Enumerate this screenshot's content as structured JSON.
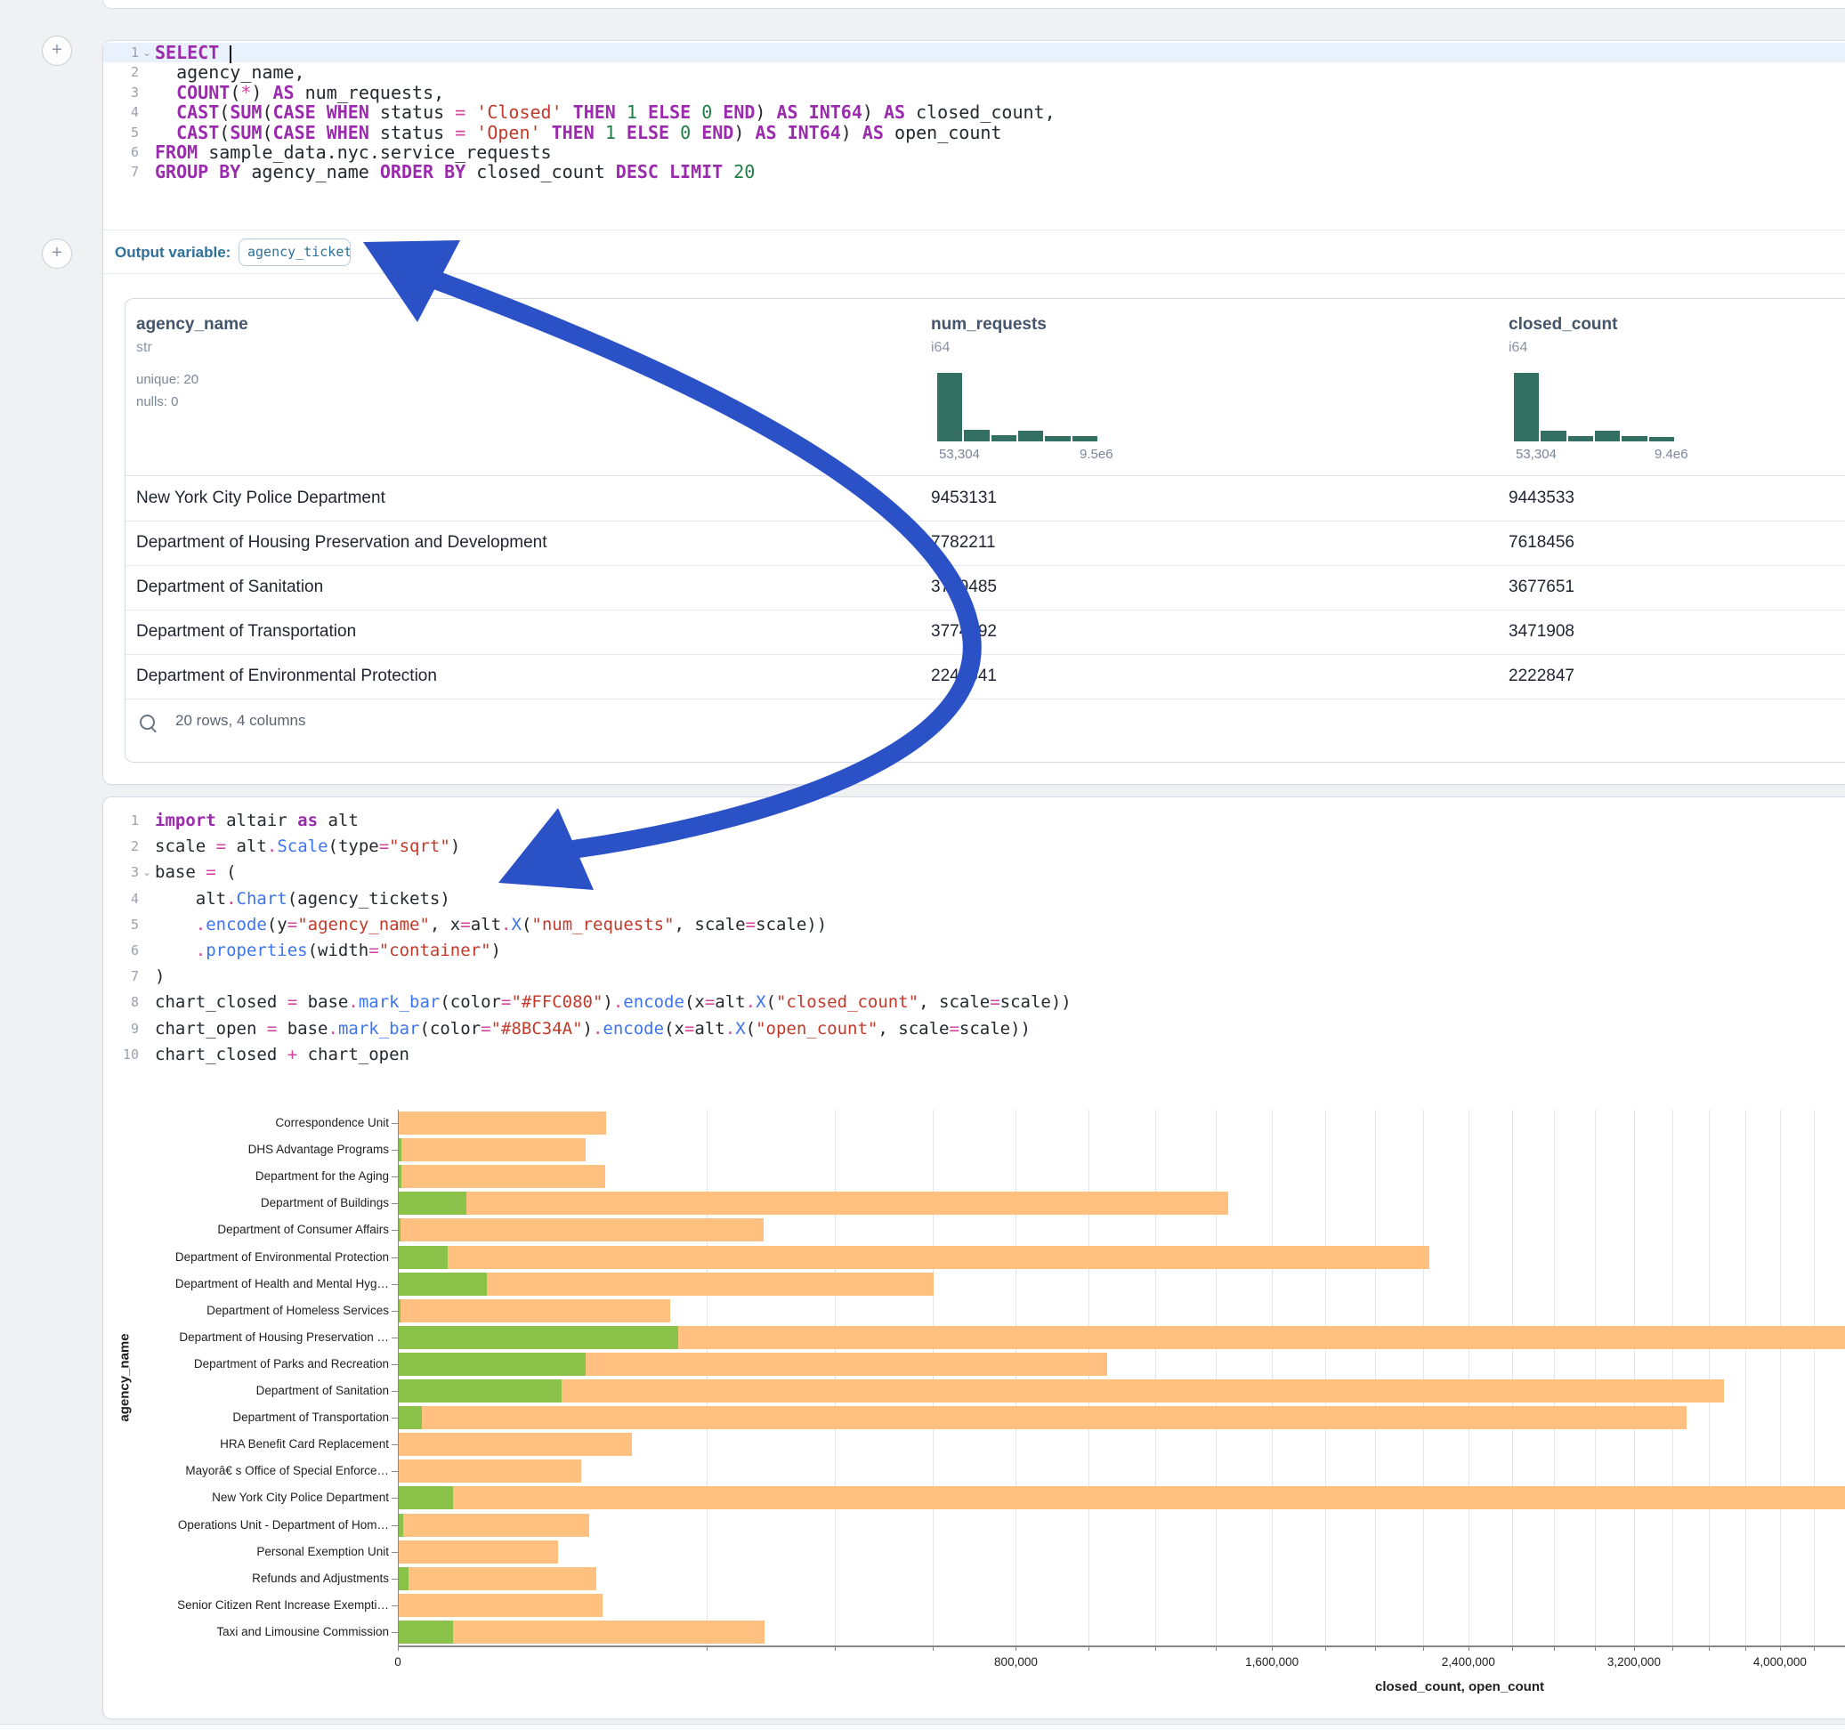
{
  "theme": {
    "accent_blue": "#2b51c7",
    "hist_color": "#336f62",
    "closed_bar_color": "#FFC080",
    "open_bar_color": "#8BC34A",
    "outvar_color": "#2e7099"
  },
  "sql_cell": {
    "add_button_label": "+",
    "lines": [
      {
        "n": "1",
        "chev": true,
        "hl": true,
        "caret": true,
        "tokens": [
          [
            "k",
            "SELECT"
          ],
          [
            "d",
            " "
          ]
        ]
      },
      {
        "n": "2",
        "tokens": [
          [
            "d",
            "  agency_name,"
          ]
        ]
      },
      {
        "n": "3",
        "tokens": [
          [
            "d",
            "  "
          ],
          [
            "k",
            "COUNT"
          ],
          [
            "d",
            "("
          ],
          [
            "o",
            "*"
          ],
          [
            "d",
            ") "
          ],
          [
            "k",
            "AS"
          ],
          [
            "d",
            " num_requests,"
          ]
        ]
      },
      {
        "n": "4",
        "tokens": [
          [
            "d",
            "  "
          ],
          [
            "k",
            "CAST"
          ],
          [
            "d",
            "("
          ],
          [
            "k",
            "SUM"
          ],
          [
            "d",
            "("
          ],
          [
            "k",
            "CASE"
          ],
          [
            "d",
            " "
          ],
          [
            "k",
            "WHEN"
          ],
          [
            "d",
            " status "
          ],
          [
            "o",
            "="
          ],
          [
            "d",
            " "
          ],
          [
            "s",
            "'Closed'"
          ],
          [
            "d",
            " "
          ],
          [
            "k",
            "THEN"
          ],
          [
            "d",
            " "
          ],
          [
            "n",
            "1"
          ],
          [
            "d",
            " "
          ],
          [
            "k",
            "ELSE"
          ],
          [
            "d",
            " "
          ],
          [
            "n",
            "0"
          ],
          [
            "d",
            " "
          ],
          [
            "k",
            "END"
          ],
          [
            "d",
            ") "
          ],
          [
            "k",
            "AS"
          ],
          [
            "d",
            " "
          ],
          [
            "k",
            "INT64"
          ],
          [
            "d",
            ") "
          ],
          [
            "k",
            "AS"
          ],
          [
            "d",
            " closed_count,"
          ]
        ]
      },
      {
        "n": "5",
        "tokens": [
          [
            "d",
            "  "
          ],
          [
            "k",
            "CAST"
          ],
          [
            "d",
            "("
          ],
          [
            "k",
            "SUM"
          ],
          [
            "d",
            "("
          ],
          [
            "k",
            "CASE"
          ],
          [
            "d",
            " "
          ],
          [
            "k",
            "WHEN"
          ],
          [
            "d",
            " status "
          ],
          [
            "o",
            "="
          ],
          [
            "d",
            " "
          ],
          [
            "s",
            "'Open'"
          ],
          [
            "d",
            " "
          ],
          [
            "k",
            "THEN"
          ],
          [
            "d",
            " "
          ],
          [
            "n",
            "1"
          ],
          [
            "d",
            " "
          ],
          [
            "k",
            "ELSE"
          ],
          [
            "d",
            " "
          ],
          [
            "n",
            "0"
          ],
          [
            "d",
            " "
          ],
          [
            "k",
            "END"
          ],
          [
            "d",
            ") "
          ],
          [
            "k",
            "AS"
          ],
          [
            "d",
            " "
          ],
          [
            "k",
            "INT64"
          ],
          [
            "d",
            ") "
          ],
          [
            "k",
            "AS"
          ],
          [
            "d",
            " open_count"
          ]
        ]
      },
      {
        "n": "6",
        "tokens": [
          [
            "k",
            "FROM"
          ],
          [
            "d",
            " sample_data.nyc.service_requests"
          ]
        ]
      },
      {
        "n": "7",
        "tokens": [
          [
            "k",
            "GROUP BY"
          ],
          [
            "d",
            " agency_name "
          ],
          [
            "k",
            "ORDER BY"
          ],
          [
            "d",
            " closed_count "
          ],
          [
            "k",
            "DESC"
          ],
          [
            "d",
            " "
          ],
          [
            "k",
            "LIMIT"
          ],
          [
            "d",
            " "
          ],
          [
            "n",
            "20"
          ]
        ]
      }
    ],
    "output_variable_label": "Output variable:",
    "output_variable_value": "agency_tickets"
  },
  "table": {
    "columns": [
      {
        "name": "agency_name",
        "type": "str",
        "meta": [
          "unique: 20",
          "nulls: 0"
        ]
      },
      {
        "name": "num_requests",
        "type": "i64",
        "hist": [
          1,
          0.17,
          0.09,
          0.16,
          0.08,
          0.08
        ],
        "min_label": "53,304",
        "max_label": "9.5e6"
      },
      {
        "name": "closed_count",
        "type": "i64",
        "hist": [
          1,
          0.15,
          0.08,
          0.15,
          0.08,
          0.07
        ],
        "min_label": "53,304",
        "max_label": "9.4e6"
      }
    ],
    "rows": [
      [
        "New York City Police Department",
        "9453131",
        "9443533"
      ],
      [
        "Department of Housing Preservation and Development",
        "7782211",
        "7618456"
      ],
      [
        "Department of Sanitation",
        "3749485",
        "3677651"
      ],
      [
        "Department of Transportation",
        "3774892",
        "3471908"
      ],
      [
        "Department of Environmental Protection",
        "2240041",
        "2222847"
      ]
    ],
    "footer": "20 rows, 4 columns"
  },
  "python_cell": {
    "lines": [
      {
        "n": "1",
        "tokens": [
          [
            "k",
            "import"
          ],
          [
            "d",
            " altair "
          ],
          [
            "k",
            "as"
          ],
          [
            "d",
            " alt"
          ]
        ]
      },
      {
        "n": "2",
        "tokens": [
          [
            "d",
            "scale "
          ],
          [
            "o",
            "="
          ],
          [
            "d",
            " alt"
          ],
          [
            "o",
            "."
          ],
          [
            "f",
            "Scale"
          ],
          [
            "d",
            "(type"
          ],
          [
            "o",
            "="
          ],
          [
            "s",
            "\"sqrt\""
          ],
          [
            "d",
            ")"
          ]
        ]
      },
      {
        "n": "3",
        "chev": true,
        "tokens": [
          [
            "d",
            "base "
          ],
          [
            "o",
            "="
          ],
          [
            "d",
            " ("
          ]
        ]
      },
      {
        "n": "4",
        "tokens": [
          [
            "d",
            "    alt"
          ],
          [
            "o",
            "."
          ],
          [
            "f",
            "Chart"
          ],
          [
            "d",
            "(agency_tickets)"
          ]
        ]
      },
      {
        "n": "5",
        "tokens": [
          [
            "d",
            "    "
          ],
          [
            "o",
            "."
          ],
          [
            "f",
            "encode"
          ],
          [
            "d",
            "(y"
          ],
          [
            "o",
            "="
          ],
          [
            "s",
            "\"agency_name\""
          ],
          [
            "d",
            ", x"
          ],
          [
            "o",
            "="
          ],
          [
            "d",
            "alt"
          ],
          [
            "o",
            "."
          ],
          [
            "f",
            "X"
          ],
          [
            "d",
            "("
          ],
          [
            "s",
            "\"num_requests\""
          ],
          [
            "d",
            ", scale"
          ],
          [
            "o",
            "="
          ],
          [
            "d",
            "scale))"
          ]
        ]
      },
      {
        "n": "6",
        "tokens": [
          [
            "d",
            "    "
          ],
          [
            "o",
            "."
          ],
          [
            "f",
            "properties"
          ],
          [
            "d",
            "(width"
          ],
          [
            "o",
            "="
          ],
          [
            "s",
            "\"container\""
          ],
          [
            "d",
            ")"
          ]
        ]
      },
      {
        "n": "7",
        "tokens": [
          [
            "d",
            ")"
          ]
        ]
      },
      {
        "n": "8",
        "tokens": [
          [
            "d",
            "chart_closed "
          ],
          [
            "o",
            "="
          ],
          [
            "d",
            " base"
          ],
          [
            "o",
            "."
          ],
          [
            "f",
            "mark_bar"
          ],
          [
            "d",
            "(color"
          ],
          [
            "o",
            "="
          ],
          [
            "s",
            "\"#FFC080\""
          ],
          [
            "d",
            ")"
          ],
          [
            "o",
            "."
          ],
          [
            "f",
            "encode"
          ],
          [
            "d",
            "(x"
          ],
          [
            "o",
            "="
          ],
          [
            "d",
            "alt"
          ],
          [
            "o",
            "."
          ],
          [
            "f",
            "X"
          ],
          [
            "d",
            "("
          ],
          [
            "s",
            "\"closed_count\""
          ],
          [
            "d",
            ", scale"
          ],
          [
            "o",
            "="
          ],
          [
            "d",
            "scale))"
          ]
        ]
      },
      {
        "n": "9",
        "tokens": [
          [
            "d",
            "chart_open "
          ],
          [
            "o",
            "="
          ],
          [
            "d",
            " base"
          ],
          [
            "o",
            "."
          ],
          [
            "f",
            "mark_bar"
          ],
          [
            "d",
            "(color"
          ],
          [
            "o",
            "="
          ],
          [
            "s",
            "\"#8BC34A\""
          ],
          [
            "d",
            ")"
          ],
          [
            "o",
            "."
          ],
          [
            "f",
            "encode"
          ],
          [
            "d",
            "(x"
          ],
          [
            "o",
            "="
          ],
          [
            "d",
            "alt"
          ],
          [
            "o",
            "."
          ],
          [
            "f",
            "X"
          ],
          [
            "d",
            "("
          ],
          [
            "s",
            "\"open_count\""
          ],
          [
            "d",
            ", scale"
          ],
          [
            "o",
            "="
          ],
          [
            "d",
            "scale))"
          ]
        ]
      },
      {
        "n": "10",
        "tokens": [
          [
            "d",
            "chart_closed "
          ],
          [
            "o",
            "+"
          ],
          [
            "d",
            " chart_open"
          ]
        ]
      }
    ]
  },
  "chart_data": {
    "type": "bar",
    "orientation": "horizontal",
    "scale_type": "sqrt",
    "domain_max": 9443533,
    "categories": [
      "Correspondence Unit",
      "DHS Advantage Programs",
      "Department for the Aging",
      "Department of Buildings",
      "Department of Consumer Affairs",
      "Department of Environmental Protection",
      "Department of Health and Mental Hyg…",
      "Department of Homeless Services",
      "Department of Housing Preservation …",
      "Department of Parks and Recreation",
      "Department of Sanitation",
      "Department of Transportation",
      "HRA Benefit Card Replacement",
      "Mayorâ€ s Office of Special Enforce…",
      "New York City Police Department",
      "Operations Unit - Department of Hom…",
      "Personal Exemption Unit",
      "Refunds and Adjustments",
      "Senior Citizen Rent Increase Exempti…",
      "Taxi and Limousine Commission"
    ],
    "series": [
      {
        "name": "closed_count",
        "color": "#FFC080",
        "values": [
          90000,
          73000,
          89000,
          1440000,
          279000,
          2222847,
          600000,
          154000,
          7618456,
          1050000,
          3677651,
          3471908,
          114000,
          70000,
          9443533,
          76000,
          53304,
          82000,
          87000,
          280000
        ]
      },
      {
        "name": "open_count",
        "color": "#8BC34A",
        "values": [
          0,
          15,
          12,
          9600,
          5,
          5000,
          16300,
          8,
          163755,
          73000,
          55800,
          1130,
          0,
          0,
          6100,
          42,
          0,
          200,
          0,
          6100
        ]
      }
    ],
    "x_major_ticks": [
      0,
      800000,
      1600000,
      2400000,
      3200000,
      4000000
    ],
    "x_major_tick_labels": [
      "0",
      "800,000",
      "1,600,000",
      "2,400,000",
      "3,200,000",
      "4,000,000"
    ],
    "x_minor_tick_step": 200000,
    "xlabel": "closed_count, open_count",
    "ylabel": "agency_name",
    "grid": true,
    "legend": "none"
  },
  "annotation": {
    "arrow_color": "#2b51c7"
  }
}
